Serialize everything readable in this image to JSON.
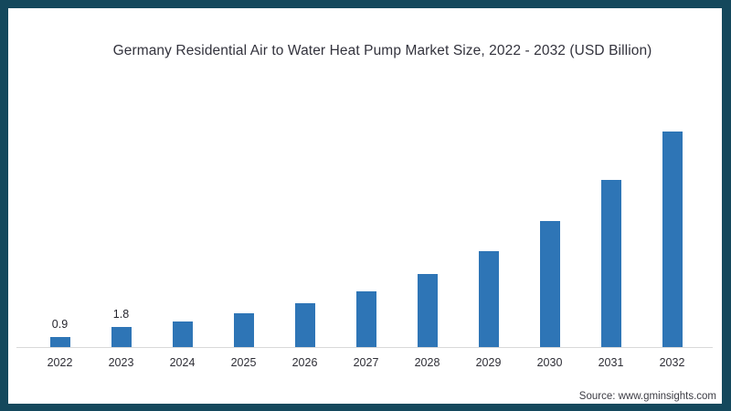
{
  "title": "Germany Residential Air to Water Heat Pump Market Size, 2022 - 2032 (USD Billion)",
  "source": "Source: www.gminsights.com",
  "colors": {
    "bar": "#2e75b6",
    "frame_border": "#14485c",
    "axis_line": "#d9d9d9",
    "title_text": "#33333d"
  },
  "chart_data": {
    "type": "bar",
    "title": "Germany Residential Air to Water Heat Pump Market Size, 2022 - 2032 (USD Billion)",
    "unit": "USD Billion",
    "categories": [
      "2022",
      "2023",
      "2024",
      "2025",
      "2026",
      "2027",
      "2028",
      "2029",
      "2030",
      "2031",
      "2032"
    ],
    "values": [
      0.9,
      1.8,
      2.3,
      3.0,
      3.9,
      5.0,
      6.5,
      8.6,
      11.3,
      14.9,
      19.3
    ],
    "shown_value_labels": [
      "0.9",
      "1.8",
      "",
      "",
      "",
      "",
      "",
      "",
      "",
      "",
      ""
    ],
    "xlabel": "",
    "ylabel": "",
    "ylim": [
      0,
      20
    ],
    "grid": false,
    "legend": false,
    "y_axis_shown": false,
    "source_label": "Source: www.gminsights.com"
  }
}
